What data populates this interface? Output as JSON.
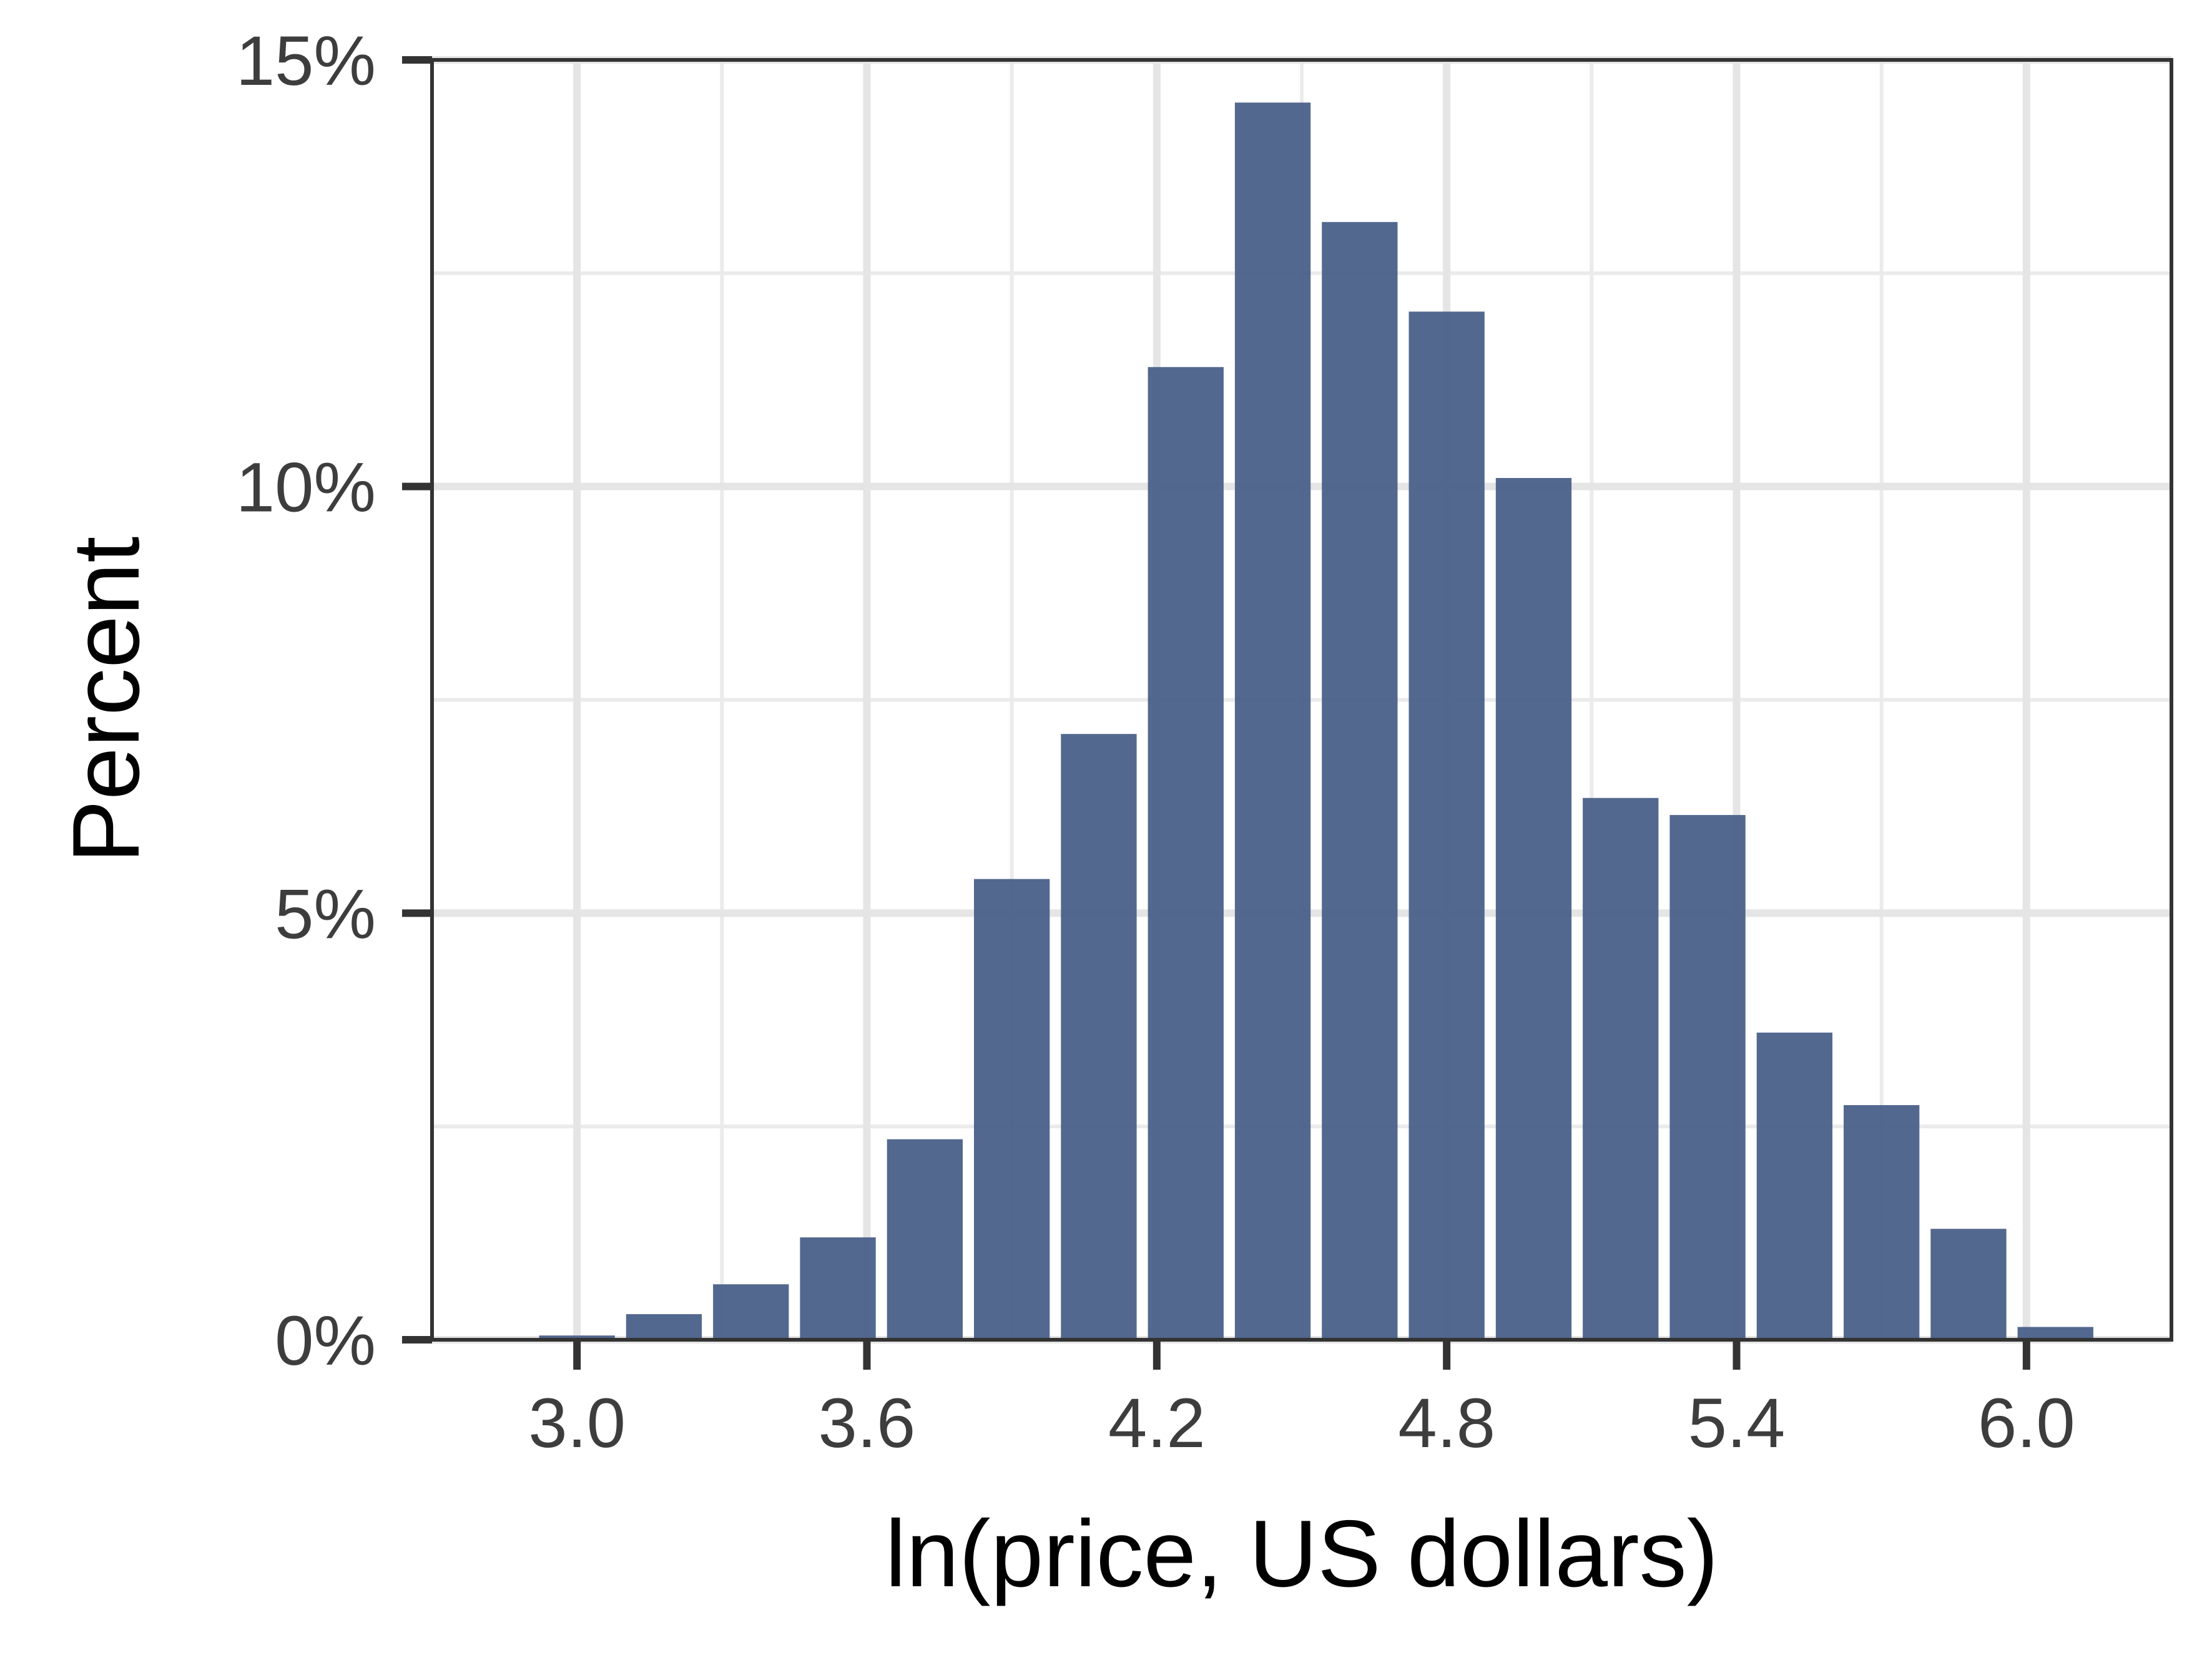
{
  "chart_data": {
    "type": "bar",
    "xlabel": "ln(price, US dollars)",
    "ylabel": "Percent",
    "xlim": [
      2.7,
      6.3
    ],
    "ylim": [
      0,
      15
    ],
    "x_ticks": [
      3.0,
      3.6,
      4.2,
      4.8,
      5.4,
      6.0
    ],
    "x_tick_labels": [
      "3.0",
      "3.6",
      "4.2",
      "4.8",
      "5.4",
      "6.0"
    ],
    "y_ticks": [
      0,
      5,
      10,
      15
    ],
    "y_tick_labels": [
      "0%",
      "5%",
      "10%",
      "15%"
    ],
    "bin_width": 0.18,
    "bin_centers": [
      3.0,
      3.18,
      3.36,
      3.54,
      3.72,
      3.9,
      4.08,
      4.26,
      4.44,
      4.62,
      4.8,
      4.98,
      5.16,
      5.34,
      5.52,
      5.7,
      5.88,
      6.06
    ],
    "values": [
      0.05,
      0.3,
      0.65,
      1.2,
      2.35,
      5.4,
      7.1,
      11.4,
      14.5,
      13.1,
      12.05,
      10.1,
      6.35,
      6.15,
      3.6,
      2.75,
      1.3,
      0.15
    ],
    "bar_color": "#4a6089",
    "grid": true,
    "legend": "none"
  }
}
